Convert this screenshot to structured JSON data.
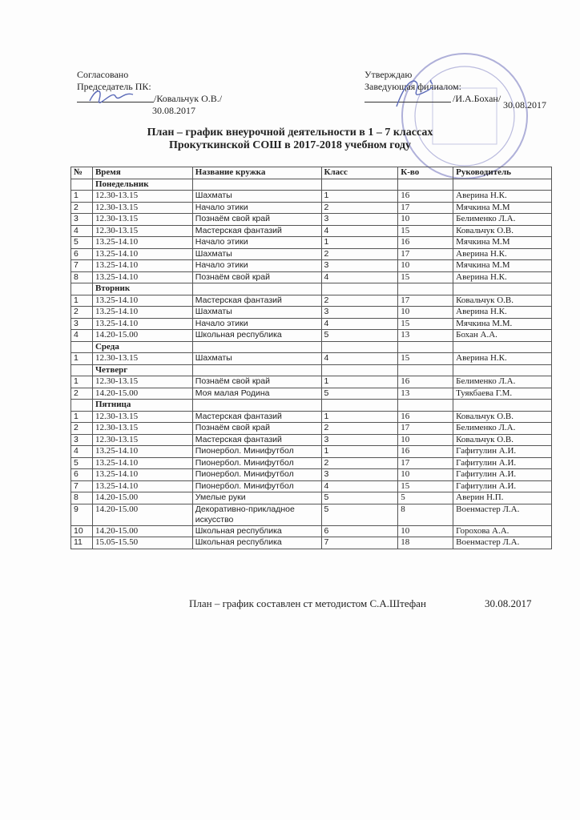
{
  "header": {
    "left": {
      "label": "Согласовано",
      "role": "Председатель ПК:",
      "name": "/Ковальчук О.В./",
      "date": "30.08.2017"
    },
    "right": {
      "label": "Утверждаю",
      "role": "Заведующая филиалом:",
      "name": "/И.А.Бохан/",
      "date": "30.08.2017"
    },
    "stamp_text": "Прокуткинская средняя общеобразовательная школа"
  },
  "title": {
    "line1": "План – график внеурочной деятельности в 1 – 7 классах",
    "line2": "Прокуткинской СОШ в 2017-2018 учебном году"
  },
  "table": {
    "columns": [
      "№",
      "Время",
      "Название кружка",
      "Класс",
      "К-во",
      "Руководитель"
    ],
    "days": [
      {
        "day": "Понедельник",
        "rows": [
          [
            "1",
            "12.30-13.15",
            "Шахматы",
            "1",
            "16",
            "Аверина Н.К."
          ],
          [
            "2",
            "12.30-13.15",
            "Начало этики",
            "2",
            "17",
            "Мячкина М.М"
          ],
          [
            "3",
            "12.30-13.15",
            "Познаём свой край",
            "3",
            "10",
            "Белименко Л.А."
          ],
          [
            "4",
            "12.30-13.15",
            "Мастерская фантазий",
            "4",
            "15",
            "Ковальчук О.В."
          ],
          [
            "5",
            "13.25-14.10",
            "Начало этики",
            "1",
            "16",
            "Мячкина М.М"
          ],
          [
            "6",
            "13.25-14.10",
            "Шахматы",
            "2",
            "17",
            "Аверина Н.К."
          ],
          [
            "7",
            "13.25-14.10",
            "Начало этики",
            "3",
            "10",
            "Мячкина М.М"
          ],
          [
            "8",
            "13.25-14.10",
            "Познаём свой край",
            "4",
            "15",
            "Аверина Н.К."
          ]
        ]
      },
      {
        "day": "Вторник",
        "rows": [
          [
            "1",
            "13.25-14.10",
            "Мастерская фантазий",
            "2",
            "17",
            "Ковальчук О.В."
          ],
          [
            "2",
            "13.25-14.10",
            "Шахматы",
            "3",
            "10",
            "Аверина Н.К."
          ],
          [
            "3",
            "13.25-14.10",
            "Начало этики",
            "4",
            "15",
            "Мячкина М.М."
          ],
          [
            "4",
            "14.20-15.00",
            "Школьная республика",
            "5",
            "13",
            "Бохан А.А."
          ]
        ]
      },
      {
        "day": "Среда",
        "rows": [
          [
            "1",
            "12.30-13.15",
            "Шахматы",
            "4",
            "15",
            "Аверина Н.К."
          ]
        ]
      },
      {
        "day": "Четверг",
        "rows": [
          [
            "1",
            "12.30-13.15",
            "Познаём свой край",
            "1",
            "16",
            "Белименко Л.А."
          ],
          [
            "2",
            "14.20-15.00",
            "Моя малая Родина",
            "5",
            "13",
            "Туякбаева Г.М."
          ]
        ]
      },
      {
        "day": "Пятница",
        "rows": [
          [
            "1",
            "12.30-13.15",
            "Мастерская фантазий",
            "1",
            "16",
            "Ковальчук О.В."
          ],
          [
            "2",
            "12.30-13.15",
            "Познаём свой край",
            "2",
            "17",
            "Белименко Л.А."
          ],
          [
            "3",
            "12.30-13.15",
            "Мастерская фантазий",
            "3",
            "10",
            "Ковальчук О.В."
          ],
          [
            "4",
            "13.25-14.10",
            "Пионербол. Минифутбол",
            "1",
            "16",
            "Гафитулин А.И."
          ],
          [
            "5",
            "13.25-14.10",
            "Пионербол. Минифутбол",
            "2",
            "17",
            "Гафитулин А.И."
          ],
          [
            "6",
            "13.25-14.10",
            "Пионербол. Минифутбол",
            "3",
            "10",
            "Гафитулин А.И."
          ],
          [
            "7",
            "13.25-14.10",
            "Пионербол. Минифутбол",
            "4",
            "15",
            "Гафитулин А.И."
          ],
          [
            "8",
            "14.20-15.00",
            "Умелые руки",
            "5",
            "5",
            "Аверин Н.П."
          ],
          [
            "9",
            "14.20-15.00",
            "Декоративно-прикладное искусство",
            "5",
            "8",
            "Военмастер Л.А."
          ],
          [
            "10",
            "14.20-15.00",
            "Школьная республика",
            "6",
            "10",
            "Горохова А.А."
          ],
          [
            "11",
            "15.05-15.50",
            "Школьная республика",
            "7",
            "18",
            "Военмастер Л.А."
          ]
        ]
      }
    ]
  },
  "footer": {
    "text": "План – график  составлен ст методистом  С.А.Штефан",
    "date": "30.08.2017"
  }
}
